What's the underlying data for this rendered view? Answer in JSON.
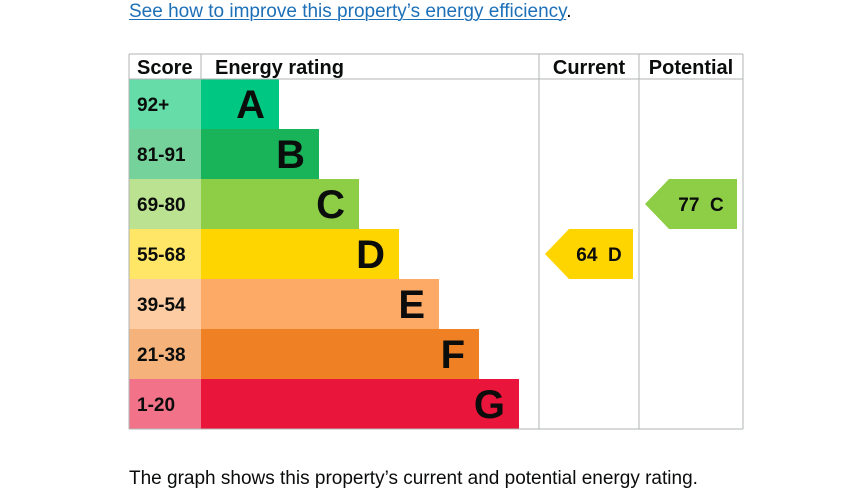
{
  "improve_link": {
    "text": "See how to improve this property’s energy efficiency",
    "trailing": "."
  },
  "footnote": "The graph shows this property’s current and potential energy rating.",
  "chart_data": {
    "type": "bar",
    "headers": {
      "score": "Score",
      "energy_rating": "Energy rating",
      "current": "Current",
      "potential": "Potential"
    },
    "bands": [
      {
        "score": "92+",
        "letter": "A",
        "min": 92,
        "max": 100,
        "color": "#00c781",
        "score_bg": "#66dda8"
      },
      {
        "score": "81-91",
        "letter": "B",
        "min": 81,
        "max": 91,
        "color": "#19b459",
        "score_bg": "#75d29b"
      },
      {
        "score": "69-80",
        "letter": "C",
        "min": 69,
        "max": 80,
        "color": "#8dce46",
        "score_bg": "#bbe290"
      },
      {
        "score": "55-68",
        "letter": "D",
        "min": 55,
        "max": 68,
        "color": "#ffd500",
        "score_bg": "#ffe666"
      },
      {
        "score": "39-54",
        "letter": "E",
        "min": 39,
        "max": 54,
        "color": "#fcaa65",
        "score_bg": "#fdcca3"
      },
      {
        "score": "21-38",
        "letter": "F",
        "min": 21,
        "max": 38,
        "color": "#ef8023",
        "score_bg": "#f5b37b"
      },
      {
        "score": "1-20",
        "letter": "G",
        "min": 1,
        "max": 20,
        "color": "#e9153b",
        "score_bg": "#f27389"
      }
    ],
    "current": {
      "value": 64,
      "band": "D",
      "label": "64  D"
    },
    "potential": {
      "value": 77,
      "band": "C",
      "label": "77  C"
    }
  }
}
